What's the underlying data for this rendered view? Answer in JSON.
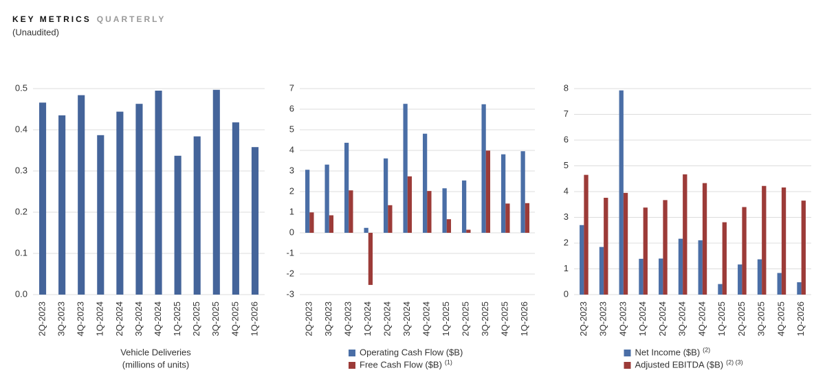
{
  "header": {
    "title": "KEY METRICS",
    "title_suffix": "QUARTERLY",
    "note": "(Unaudited)"
  },
  "chart_data": [
    {
      "type": "bar",
      "xlabel": [
        "Vehicle Deliveries",
        "(millions of units)"
      ],
      "categories": [
        "2Q-2023",
        "3Q-2023",
        "4Q-2023",
        "1Q-2024",
        "2Q-2024",
        "3Q-2024",
        "4Q-2024",
        "1Q-2025",
        "2Q-2025",
        "3Q-2025",
        "4Q-2025",
        "1Q-2026"
      ],
      "values": [
        0.466,
        0.435,
        0.484,
        0.387,
        0.444,
        0.463,
        0.495,
        0.337,
        0.384,
        0.497,
        0.418,
        0.358
      ],
      "color": "#44649a",
      "ylim": [
        0,
        0.5
      ],
      "yticks": [
        {
          "value": 0,
          "label": "0.0"
        },
        0.1,
        0.2,
        0.3,
        0.4,
        0.5
      ],
      "grid": true
    },
    {
      "type": "bar",
      "categories": [
        "2Q-2023",
        "3Q-2023",
        "4Q-2023",
        "1Q-2024",
        "2Q-2024",
        "3Q-2024",
        "4Q-2024",
        "1Q-2025",
        "2Q-2025",
        "3Q-2025",
        "4Q-2025",
        "1Q-2026"
      ],
      "series": [
        {
          "name": "Operating Cash Flow ($B)",
          "color": "#4a6ea6",
          "values": [
            3.06,
            3.31,
            4.37,
            0.24,
            3.61,
            6.26,
            4.81,
            2.16,
            2.54,
            6.24,
            3.81,
            3.96
          ]
        },
        {
          "name": "Free Cash Flow ($B)",
          "footnote": "(1)",
          "color": "#9c3b38",
          "values": [
            0.99,
            0.85,
            2.06,
            -2.53,
            1.34,
            2.74,
            2.03,
            0.66,
            0.15,
            3.99,
            1.42,
            1.44
          ]
        }
      ],
      "ylim": [
        -3,
        7
      ],
      "yticks": [
        -3,
        -2,
        -1,
        0,
        1,
        2,
        3,
        4,
        5,
        6,
        7
      ],
      "grid": true
    },
    {
      "type": "bar",
      "categories": [
        "2Q-2023",
        "3Q-2023",
        "4Q-2023",
        "1Q-2024",
        "2Q-2024",
        "3Q-2024",
        "4Q-2024",
        "1Q-2025",
        "2Q-2025",
        "3Q-2025",
        "4Q-2025",
        "1Q-2026"
      ],
      "series": [
        {
          "name": "Net Income ($B)",
          "footnote": "(2)",
          "color": "#4a6ea6",
          "values": [
            2.7,
            1.85,
            7.93,
            1.39,
            1.4,
            2.17,
            2.11,
            0.41,
            1.17,
            1.37,
            0.84,
            0.48
          ]
        },
        {
          "name": "Adjusted EBITDA ($B)",
          "footnote": "(2) (3)",
          "color": "#9c3b38",
          "values": [
            4.65,
            3.76,
            3.95,
            3.38,
            3.67,
            4.67,
            4.33,
            2.81,
            3.4,
            4.22,
            4.16,
            3.65
          ]
        }
      ],
      "ylim": [
        0,
        8
      ],
      "yticks": [
        0,
        1,
        2,
        3,
        4,
        5,
        6,
        7,
        8
      ],
      "grid": true
    }
  ]
}
